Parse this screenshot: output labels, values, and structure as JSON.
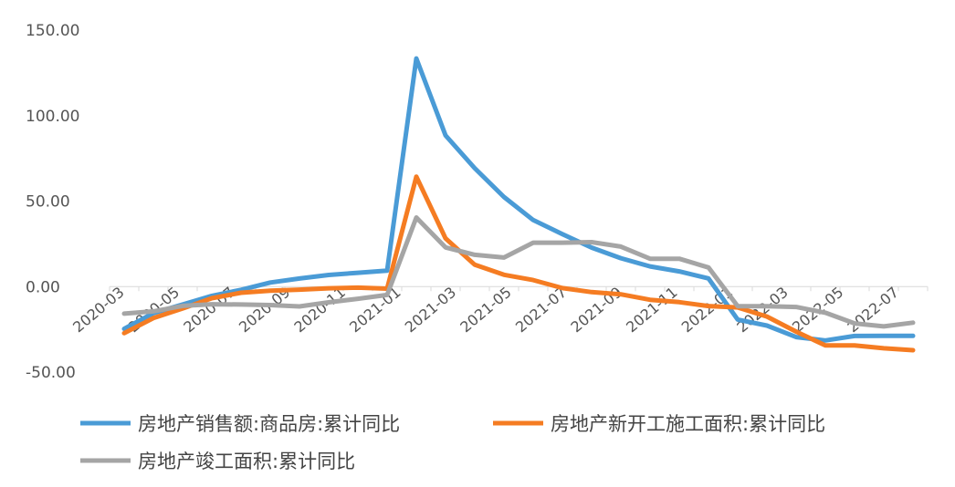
{
  "chart_data": {
    "type": "line",
    "title": "",
    "xlabel": "",
    "ylabel": "",
    "ylim": [
      -50,
      150
    ],
    "yticks": [
      "-50.00",
      "0.00",
      "50.00",
      "100.00",
      "150.00"
    ],
    "grid": false,
    "legend_position": "bottom",
    "x": [
      "2020-03",
      "2020-04",
      "2020-05",
      "2020-06",
      "2020-07",
      "2020-08",
      "2020-09",
      "2020-10",
      "2020-11",
      "2020-12",
      "2021-02",
      "2021-03",
      "2021-04",
      "2021-05",
      "2021-06",
      "2021-07",
      "2021-08",
      "2021-09",
      "2021-10",
      "2021-11",
      "2021-12",
      "2022-02",
      "2022-03",
      "2022-04",
      "2022-05",
      "2022-06",
      "2022-07",
      "2022-08"
    ],
    "xtick_labels": [
      "2020-03",
      "2020-05",
      "2020-07",
      "2020-09",
      "2020-11",
      "2021-01",
      "2021-03",
      "2021-05",
      "2021-07",
      "2021-09",
      "2021-11",
      "2022-01",
      "2022-03",
      "2022-05",
      "2022-07"
    ],
    "series": [
      {
        "name": "房地产销售额:商品房:累计同比",
        "color": "#4a9bd6",
        "values": [
          -24.7,
          -15.5,
          -10.5,
          -5.4,
          -1.9,
          2.4,
          4.7,
          6.8,
          8.1,
          9.3,
          133.4,
          88.4,
          69.2,
          52.4,
          38.9,
          30.7,
          22.8,
          16.6,
          11.8,
          8.9,
          4.8,
          -19.3,
          -22.8,
          -29.5,
          -31.5,
          -28.9,
          -28.8,
          -28.8
        ]
      },
      {
        "name": "房地产新开工施工面积:累计同比",
        "color": "#f57c22",
        "values": [
          -27.2,
          -18.4,
          -12.8,
          -6.8,
          -3.6,
          -2.4,
          -1.8,
          -1.0,
          -0.6,
          -1.2,
          64.3,
          28.2,
          12.8,
          6.9,
          3.8,
          -0.9,
          -3.2,
          -4.5,
          -7.7,
          -9.1,
          -11.4,
          -12.2,
          -17.5,
          -26.3,
          -34.4,
          -34.4,
          -36.1,
          -37.2
        ]
      },
      {
        "name": "房地产竣工面积:累计同比",
        "color": "#a5a5a5",
        "values": [
          -15.8,
          -14.5,
          -11.3,
          -10.3,
          -10.5,
          -10.8,
          -11.6,
          -9.2,
          -7.1,
          -4.9,
          40.4,
          22.9,
          18.6,
          17.0,
          25.7,
          25.7,
          26.0,
          23.4,
          16.3,
          16.3,
          11.2,
          -11.5,
          -11.5,
          -11.9,
          -15.3,
          -21.5,
          -23.3,
          -21.1
        ]
      }
    ]
  }
}
